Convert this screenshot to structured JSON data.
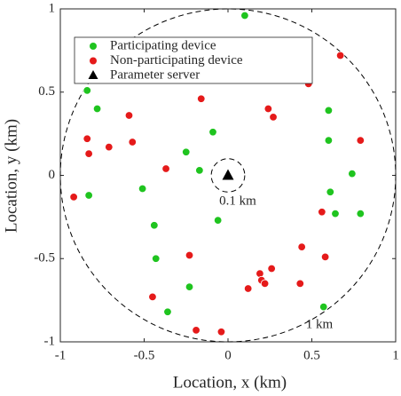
{
  "chart_data": {
    "type": "scatter",
    "xlabel": "Location, x (km)",
    "ylabel": "Location, y (km)",
    "xlim": [
      -1,
      1
    ],
    "ylim": [
      -1,
      1
    ],
    "xticks": [
      -1,
      -0.5,
      0,
      0.5,
      1
    ],
    "yticks": [
      -1,
      -0.5,
      0,
      0.5,
      1
    ],
    "legend": "upper left",
    "series": [
      {
        "name": "Participating device",
        "color": "#1fc41f",
        "marker": "circle",
        "x": [
          0.1,
          -0.84,
          -0.78,
          0.6,
          -0.09,
          0.6,
          -0.25,
          -0.17,
          0.74,
          -0.51,
          -0.83,
          0.61,
          0.79,
          0.64,
          -0.06,
          -0.44,
          -0.43,
          -0.23,
          -0.36,
          0.57
        ],
        "y": [
          0.96,
          0.51,
          0.4,
          0.39,
          0.26,
          0.21,
          0.14,
          0.03,
          0.01,
          -0.08,
          -0.12,
          -0.1,
          -0.23,
          -0.23,
          -0.27,
          -0.3,
          -0.5,
          -0.67,
          -0.82,
          -0.79
        ]
      },
      {
        "name": "Non-participating device",
        "color": "#e51a1a",
        "marker": "circle",
        "x": [
          0.67,
          0.48,
          -0.16,
          0.24,
          0.27,
          -0.59,
          -0.84,
          -0.57,
          -0.71,
          -0.83,
          0.79,
          -0.37,
          -0.92,
          0.56,
          -0.23,
          0.44,
          0.58,
          0.26,
          0.19,
          0.2,
          0.22,
          0.43,
          0.12,
          -0.45,
          -0.04,
          -0.19
        ],
        "y": [
          0.72,
          0.55,
          0.46,
          0.4,
          0.35,
          0.36,
          0.22,
          0.2,
          0.17,
          0.13,
          0.21,
          0.04,
          -0.13,
          -0.22,
          -0.48,
          -0.43,
          -0.49,
          -0.56,
          -0.59,
          -0.63,
          -0.65,
          -0.65,
          -0.68,
          -0.73,
          -0.94,
          -0.93
        ]
      },
      {
        "name": "Parameter server",
        "color": "#000000",
        "marker": "triangle",
        "x": [
          0
        ],
        "y": [
          0
        ]
      }
    ],
    "annotations": [
      {
        "text": "0.1 km",
        "radius": 0.1
      },
      {
        "text": "1 km",
        "radius": 1
      }
    ]
  }
}
